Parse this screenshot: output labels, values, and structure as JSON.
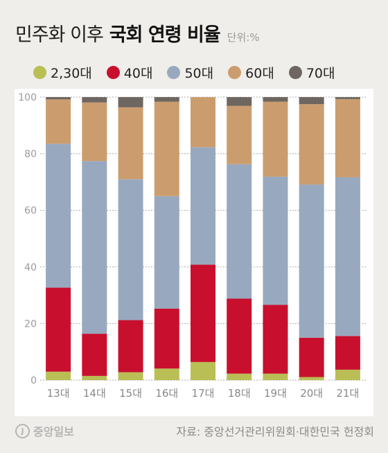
{
  "header": {
    "title_light": "민주화 이후",
    "title_bold": "국회 연령 비율",
    "unit": "단위:%"
  },
  "colors": {
    "2,30대": "#b9bf55",
    "40대": "#c8102e",
    "50대": "#98a9bf",
    "60대": "#cb9d6e",
    "70대": "#6e6660"
  },
  "legend": [
    "2,30대",
    "40대",
    "50대",
    "60대",
    "70대"
  ],
  "footer": {
    "logo": "중앙일보",
    "source": "자료: 중앙선거관리위원회·대한민국 헌정회"
  },
  "chart_data": {
    "type": "bar",
    "stacked": true,
    "categories": [
      "13대",
      "14대",
      "15대",
      "16대",
      "17대",
      "18대",
      "19대",
      "20대",
      "21대"
    ],
    "series": [
      {
        "name": "2,30대",
        "values": [
          3.0,
          1.5,
          2.8,
          4.1,
          6.4,
          2.3,
          2.3,
          1.1,
          3.7
        ]
      },
      {
        "name": "40대",
        "values": [
          29.7,
          14.9,
          18.4,
          21.2,
          34.4,
          26.5,
          24.3,
          13.9,
          11.9
        ]
      },
      {
        "name": "50대",
        "values": [
          50.8,
          61.0,
          49.8,
          39.7,
          41.5,
          47.5,
          45.3,
          54.1,
          56.1
        ]
      },
      {
        "name": "60대",
        "values": [
          15.7,
          20.7,
          25.4,
          33.4,
          17.7,
          20.6,
          26.5,
          28.4,
          27.6
        ]
      },
      {
        "name": "70대",
        "values": [
          0.8,
          1.9,
          3.6,
          1.6,
          0.0,
          3.1,
          1.6,
          2.5,
          0.7
        ]
      }
    ],
    "ylim": [
      0,
      100
    ],
    "yticks": [
      0,
      20,
      40,
      60,
      80,
      100
    ],
    "grid": true,
    "legend_position": "top"
  }
}
